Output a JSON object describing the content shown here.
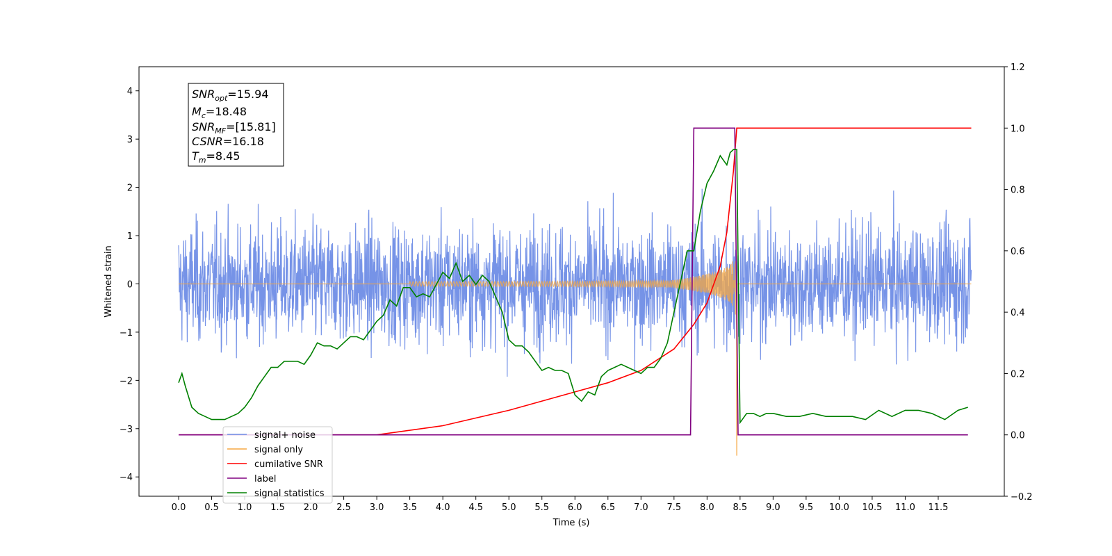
{
  "chart_data": {
    "type": "line",
    "title": "",
    "xlabel": "Time (s)",
    "ylabel": "Whitened strain",
    "y2label": "",
    "xlim": [
      -0.6,
      12.5
    ],
    "ylim": [
      -4.4,
      4.5
    ],
    "y2lim": [
      -0.2,
      1.2
    ],
    "x_ticks": [
      "0.0",
      "0.5",
      "1.0",
      "1.5",
      "2.0",
      "2.5",
      "3.0",
      "3.5",
      "4.0",
      "4.5",
      "5.0",
      "5.5",
      "6.0",
      "6.5",
      "7.0",
      "7.5",
      "8.0",
      "8.5",
      "9.0",
      "9.5",
      "10.0",
      "10.5",
      "11.0",
      "11.5"
    ],
    "y_ticks": [
      "4",
      "3",
      "2",
      "1",
      "0",
      "−1",
      "−2",
      "−3",
      "−4"
    ],
    "y2_ticks": [
      "1.2",
      "1.0",
      "0.8",
      "0.6",
      "0.4",
      "0.2",
      "0.0",
      "−0.2"
    ],
    "grid": false,
    "legend_position": "lower-left",
    "annotation": {
      "lines": [
        {
          "sym": "SNR",
          "sub": "opt",
          "value": "=15.94"
        },
        {
          "sym": "M",
          "sub": "c",
          "value": "=18.48"
        },
        {
          "sym": "SNR",
          "sub": "MF",
          "value": "=[15.81]"
        },
        {
          "sym": "CSNR",
          "sub": "",
          "value": "=16.18"
        },
        {
          "sym": "T",
          "sub": "m",
          "value": "=8.45"
        }
      ]
    },
    "merger_time": 8.45,
    "noise": {
      "x_start": 0.0,
      "x_end": 12.0,
      "std": 0.85
    },
    "chirp": {
      "x_start": 3.5,
      "x_end": 8.45,
      "min_amp": -3.55
    },
    "label_step": {
      "x_rise": 7.75,
      "x_fall": 8.42,
      "y_low": 0.0,
      "y_high": 1.0,
      "x_start": 0.0,
      "x_end": 11.95
    },
    "series": [
      {
        "name": "signal+ noise",
        "color": "#6f8de6",
        "axis": "left"
      },
      {
        "name": "signal only",
        "color": "#f5a742",
        "axis": "left"
      },
      {
        "name": "cumilative SNR",
        "color": "#ff0000",
        "axis": "right",
        "x": [
          0.0,
          3.0,
          4.0,
          5.0,
          6.0,
          6.5,
          7.0,
          7.5,
          7.8,
          8.0,
          8.2,
          8.3,
          8.4,
          8.45,
          8.5,
          12.0
        ],
        "values": [
          0.0,
          0.0,
          0.03,
          0.08,
          0.14,
          0.17,
          0.21,
          0.28,
          0.36,
          0.43,
          0.55,
          0.66,
          0.86,
          1.0,
          1.0,
          1.0
        ]
      },
      {
        "name": "label",
        "color": "#800080",
        "axis": "right"
      },
      {
        "name": "signal statistics",
        "color": "#008000",
        "axis": "right",
        "x": [
          0.0,
          0.05,
          0.1,
          0.2,
          0.3,
          0.4,
          0.5,
          0.6,
          0.7,
          0.8,
          0.9,
          1.0,
          1.1,
          1.2,
          1.3,
          1.4,
          1.5,
          1.6,
          1.7,
          1.8,
          1.9,
          2.0,
          2.1,
          2.2,
          2.3,
          2.4,
          2.5,
          2.6,
          2.7,
          2.8,
          2.9,
          3.0,
          3.1,
          3.2,
          3.3,
          3.4,
          3.5,
          3.6,
          3.7,
          3.8,
          3.9,
          4.0,
          4.1,
          4.2,
          4.3,
          4.4,
          4.5,
          4.6,
          4.7,
          4.8,
          4.9,
          5.0,
          5.1,
          5.2,
          5.3,
          5.4,
          5.5,
          5.6,
          5.7,
          5.8,
          5.9,
          6.0,
          6.1,
          6.2,
          6.3,
          6.4,
          6.5,
          6.6,
          6.7,
          6.8,
          6.9,
          7.0,
          7.1,
          7.2,
          7.3,
          7.4,
          7.5,
          7.6,
          7.7,
          7.8,
          7.9,
          8.0,
          8.1,
          8.2,
          8.3,
          8.35,
          8.4,
          8.45,
          8.5,
          8.6,
          8.7,
          8.8,
          8.9,
          9.0,
          9.2,
          9.4,
          9.6,
          9.8,
          10.0,
          10.2,
          10.4,
          10.6,
          10.8,
          11.0,
          11.2,
          11.4,
          11.6,
          11.8,
          11.95
        ],
        "values": [
          0.17,
          0.2,
          0.16,
          0.09,
          0.07,
          0.06,
          0.05,
          0.05,
          0.05,
          0.06,
          0.07,
          0.09,
          0.12,
          0.16,
          0.19,
          0.22,
          0.22,
          0.24,
          0.24,
          0.24,
          0.23,
          0.26,
          0.3,
          0.29,
          0.29,
          0.28,
          0.3,
          0.32,
          0.32,
          0.31,
          0.34,
          0.37,
          0.39,
          0.44,
          0.42,
          0.48,
          0.48,
          0.45,
          0.46,
          0.45,
          0.49,
          0.53,
          0.51,
          0.56,
          0.5,
          0.52,
          0.49,
          0.52,
          0.5,
          0.45,
          0.4,
          0.31,
          0.29,
          0.29,
          0.27,
          0.24,
          0.21,
          0.22,
          0.21,
          0.21,
          0.2,
          0.13,
          0.11,
          0.14,
          0.13,
          0.19,
          0.21,
          0.22,
          0.23,
          0.22,
          0.21,
          0.2,
          0.22,
          0.22,
          0.25,
          0.3,
          0.4,
          0.5,
          0.6,
          0.6,
          0.73,
          0.82,
          0.86,
          0.91,
          0.88,
          0.92,
          0.93,
          0.93,
          0.04,
          0.07,
          0.07,
          0.06,
          0.07,
          0.07,
          0.06,
          0.06,
          0.07,
          0.06,
          0.06,
          0.06,
          0.05,
          0.08,
          0.06,
          0.08,
          0.08,
          0.07,
          0.05,
          0.08,
          0.09
        ]
      }
    ]
  }
}
